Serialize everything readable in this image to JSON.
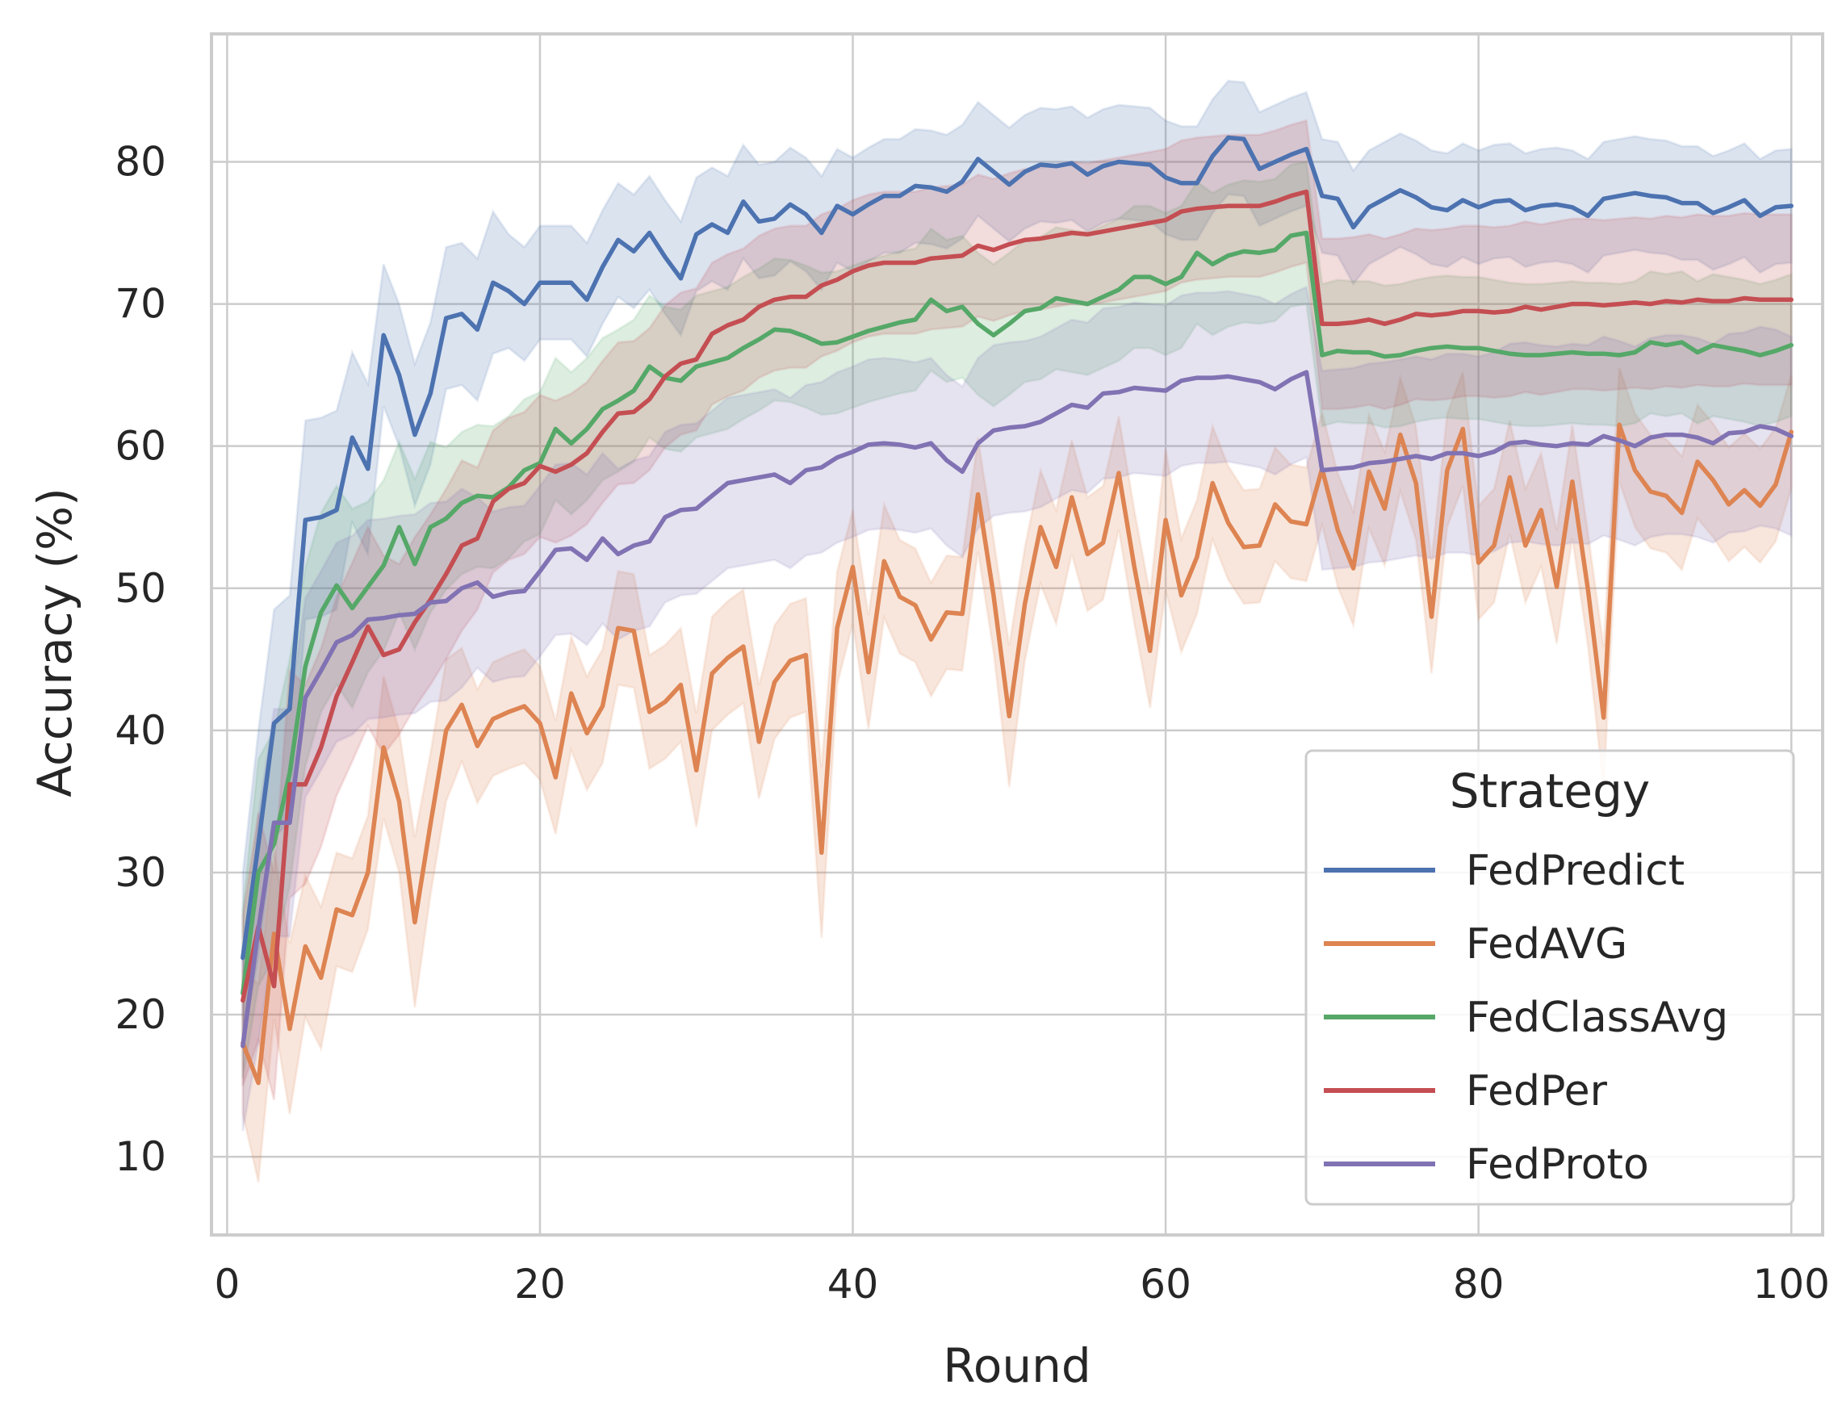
{
  "chart_data": {
    "type": "line",
    "xlabel": "Round",
    "ylabel": "Accuracy (%)",
    "xlim": [
      -1,
      102
    ],
    "ylim": [
      4.5,
      89
    ],
    "xticks": [
      0,
      20,
      40,
      60,
      80,
      100
    ],
    "yticks": [
      10,
      20,
      30,
      40,
      50,
      60,
      70,
      80
    ],
    "grid": true,
    "legend": {
      "title": "Strategy",
      "placement": "lower-right"
    },
    "series": [
      {
        "name": "FedPredict",
        "color": "#4c72b0",
        "band_half_width": [
          6,
          8,
          8,
          8,
          7,
          7,
          7,
          6,
          6,
          5,
          5,
          5,
          5,
          5,
          5,
          5,
          5,
          4,
          4,
          4,
          4,
          4,
          4,
          4,
          4,
          4,
          4,
          4,
          4,
          4,
          4,
          4,
          4,
          4,
          4,
          4,
          4,
          4,
          4,
          4,
          4,
          4,
          4,
          4,
          4,
          4,
          4,
          4,
          4,
          4,
          4,
          4,
          4,
          4,
          4,
          4,
          4,
          4,
          4,
          4,
          4,
          4,
          4,
          4,
          4,
          4,
          4,
          4,
          4,
          4,
          4,
          4,
          4,
          4,
          4,
          4,
          4,
          4,
          4,
          4,
          4,
          4,
          4,
          4,
          4,
          4,
          4,
          4,
          4,
          4,
          4,
          4,
          4,
          4,
          4,
          4,
          4,
          4,
          4,
          4
        ],
        "values": [
          24,
          32,
          40.5,
          41.5,
          54.8,
          55,
          55.5,
          60.6,
          58.4,
          67.8,
          65,
          60.8,
          63.7,
          69,
          69.3,
          68.2,
          71.5,
          70.9,
          70,
          71.5,
          71.5,
          71.5,
          70.3,
          72.6,
          74.5,
          73.7,
          75,
          73.3,
          71.8,
          74.9,
          75.6,
          75,
          77.2,
          75.8,
          76,
          77,
          76.3,
          75,
          76.9,
          76.3,
          77,
          77.6,
          77.6,
          78.3,
          78.2,
          77.9,
          78.6,
          80.2,
          79.3,
          78.4,
          79.3,
          79.8,
          79.7,
          79.9,
          79.1,
          79.7,
          80,
          79.9,
          79.8,
          78.9,
          78.5,
          78.5,
          80.4,
          81.7,
          81.6,
          79.5,
          80,
          80.5,
          80.9,
          77.6,
          77.4,
          75.4,
          76.8,
          77.4,
          78,
          77.5,
          76.8,
          76.6,
          77.3,
          76.8,
          77.2,
          77.3,
          76.6,
          76.9,
          77,
          76.8,
          76.2,
          77.4,
          77.6,
          77.8,
          77.6,
          77.5,
          77.1,
          77.1,
          76.4,
          76.8,
          77.3,
          76.2,
          76.8,
          76.9
        ]
      },
      {
        "name": "FedAVG",
        "color": "#dd8452",
        "band_half_width": [
          5,
          7,
          6,
          6,
          5,
          5,
          4,
          4,
          4,
          5,
          5,
          6,
          5,
          5,
          4,
          4,
          4,
          4,
          4,
          4,
          4,
          4,
          4,
          4,
          4,
          4,
          4,
          4,
          4,
          4,
          4,
          4,
          4,
          4,
          4,
          4,
          4,
          6,
          4,
          4,
          4,
          4,
          4,
          4,
          4,
          4,
          4,
          4,
          4,
          5,
          4,
          4,
          4,
          4,
          4,
          4,
          4,
          4,
          4,
          5,
          4,
          4,
          4,
          4,
          4,
          4,
          4,
          4,
          4,
          4,
          4,
          4,
          4,
          4,
          4,
          4,
          4,
          4,
          4,
          4,
          4,
          4,
          4,
          4,
          4,
          4,
          4,
          5,
          4,
          4,
          4,
          4,
          4,
          4,
          4,
          4,
          4,
          4,
          4,
          4
        ],
        "values": [
          18,
          15.2,
          25.7,
          19,
          24.8,
          22.6,
          27.4,
          27,
          30,
          38.8,
          35,
          26.5,
          33.4,
          40,
          41.8,
          38.9,
          40.8,
          41.3,
          41.7,
          40.5,
          36.7,
          42.6,
          39.8,
          41.7,
          47.2,
          47,
          41.3,
          42,
          43.2,
          37.2,
          44,
          45.1,
          45.9,
          39.2,
          43.4,
          44.9,
          45.3,
          31.4,
          47.2,
          51.5,
          44.1,
          51.9,
          49.4,
          48.8,
          46.4,
          48.3,
          48.2,
          56.6,
          49.5,
          41,
          48.9,
          54.3,
          51.5,
          56.4,
          52.4,
          53.2,
          58.1,
          51.5,
          45.6,
          54.8,
          49.5,
          52.2,
          57.4,
          54.6,
          52.9,
          53,
          55.9,
          54.7,
          54.5,
          58.4,
          54.1,
          51.4,
          58.2,
          55.6,
          60.8,
          57.4,
          48,
          58.3,
          61.2,
          51.8,
          53,
          57.8,
          53,
          55.5,
          50.1,
          57.5,
          49.9,
          40.9,
          61.5,
          58.3,
          56.8,
          56.5,
          55.3,
          58.9,
          57.6,
          55.9,
          56.9,
          55.8,
          57.3,
          61
        ]
      },
      {
        "name": "FedClassAvg",
        "color": "#55a868",
        "band_half_width": [
          6,
          8,
          8,
          8,
          7,
          7,
          7,
          7,
          6,
          6,
          6,
          6,
          6,
          5,
          5,
          5,
          5,
          5,
          5,
          5,
          5,
          5,
          5,
          5,
          5,
          5,
          5,
          5,
          5,
          5,
          5,
          5,
          5,
          5,
          5,
          5,
          5,
          5,
          5,
          5,
          5,
          5,
          5,
          5,
          5,
          5,
          5,
          5,
          5,
          5,
          5,
          5,
          5,
          5,
          5,
          5,
          5,
          5,
          5,
          5,
          5,
          5,
          5,
          5,
          5,
          5,
          5,
          5,
          5,
          5,
          5,
          5,
          5,
          5,
          5,
          5,
          5,
          5,
          5,
          5,
          5,
          5,
          5,
          5,
          5,
          5,
          5,
          5,
          5,
          5,
          5,
          5,
          5,
          5,
          5,
          5,
          5,
          5,
          5,
          5
        ],
        "values": [
          21.5,
          30,
          32,
          37,
          44.5,
          48.3,
          50.2,
          48.6,
          50.1,
          51.6,
          54.3,
          51.7,
          54.3,
          54.9,
          56,
          56.5,
          56.4,
          57.1,
          58.3,
          58.8,
          61.2,
          60.2,
          61.2,
          62.6,
          63.2,
          63.9,
          65.6,
          64.8,
          64.6,
          65.6,
          65.9,
          66.2,
          66.9,
          67.5,
          68.2,
          68.1,
          67.7,
          67.2,
          67.3,
          67.7,
          68.1,
          68.4,
          68.7,
          68.9,
          70.3,
          69.5,
          69.8,
          68.6,
          67.8,
          68.6,
          69.5,
          69.7,
          70.4,
          70.2,
          70,
          70.5,
          71,
          71.9,
          71.9,
          71.4,
          71.9,
          73.6,
          72.8,
          73.4,
          73.7,
          73.6,
          73.8,
          74.8,
          75,
          66.4,
          66.7,
          66.6,
          66.6,
          66.3,
          66.4,
          66.7,
          66.9,
          67,
          66.9,
          66.9,
          66.7,
          66.5,
          66.4,
          66.4,
          66.5,
          66.6,
          66.5,
          66.5,
          66.4,
          66.6,
          67.3,
          67.1,
          67.3,
          66.6,
          67.1,
          66.9,
          66.7,
          66.4,
          66.7,
          67.1
        ]
      },
      {
        "name": "FedPer",
        "color": "#c44e52",
        "band_half_width": [
          6,
          8,
          8,
          8,
          7,
          7,
          7,
          7,
          7,
          7,
          6,
          6,
          6,
          6,
          6,
          5,
          5,
          5,
          5,
          5,
          5,
          5,
          5,
          5,
          5,
          5,
          5,
          5,
          5,
          5,
          5,
          5,
          5,
          5,
          5,
          5,
          5,
          5,
          5,
          5,
          5,
          5,
          5,
          5,
          5,
          5,
          5,
          5,
          5,
          5,
          5,
          5,
          5,
          5,
          5,
          5,
          5,
          5,
          5,
          5,
          5,
          5,
          5,
          5,
          5,
          5,
          5,
          5,
          5,
          6,
          6,
          6,
          6,
          6,
          6,
          6,
          6,
          6,
          6,
          6,
          6,
          6,
          6,
          6,
          6,
          6,
          6,
          6,
          6,
          6,
          6,
          6,
          6,
          6,
          6,
          6,
          6,
          6,
          6,
          6
        ],
        "values": [
          21,
          26.2,
          22,
          36.2,
          36.2,
          38.8,
          42.4,
          44.8,
          47.3,
          45.3,
          45.7,
          47.6,
          49.2,
          51,
          53,
          53.5,
          56.1,
          57,
          57.4,
          58.6,
          58.2,
          58.7,
          59.5,
          61,
          62.3,
          62.4,
          63.3,
          64.9,
          65.8,
          66.1,
          67.9,
          68.5,
          68.9,
          69.8,
          70.3,
          70.5,
          70.5,
          71.3,
          71.7,
          72.3,
          72.7,
          72.9,
          72.9,
          72.9,
          73.2,
          73.3,
          73.4,
          74.1,
          73.8,
          74.2,
          74.5,
          74.6,
          74.8,
          75,
          74.9,
          75.1,
          75.3,
          75.5,
          75.7,
          75.9,
          76.5,
          76.7,
          76.8,
          76.9,
          76.9,
          76.9,
          77.2,
          77.6,
          77.9,
          68.6,
          68.6,
          68.7,
          68.9,
          68.6,
          68.9,
          69.3,
          69.2,
          69.3,
          69.5,
          69.5,
          69.4,
          69.5,
          69.8,
          69.6,
          69.8,
          70,
          70,
          69.9,
          70,
          70.1,
          70,
          70.2,
          70.1,
          70.3,
          70.2,
          70.2,
          70.4,
          70.3,
          70.3,
          70.3
        ]
      },
      {
        "name": "FedProto",
        "color": "#8172b3",
        "band_half_width": [
          6,
          8,
          8,
          8,
          7,
          7,
          7,
          7,
          7,
          7,
          7,
          7,
          7,
          7,
          7,
          6,
          6,
          6,
          6,
          6,
          6,
          6,
          6,
          6,
          6,
          6,
          6,
          6,
          6,
          6,
          6,
          6,
          6,
          6,
          6,
          6,
          6,
          6,
          6,
          6,
          6,
          6,
          6,
          6,
          6,
          6,
          6,
          6,
          6,
          6,
          6,
          6,
          6,
          6,
          6,
          6,
          6,
          6,
          6,
          6,
          6,
          6,
          6,
          6,
          6,
          6,
          6,
          6,
          6,
          7,
          7,
          7,
          7,
          7,
          7,
          7,
          7,
          7,
          7,
          7,
          7,
          7,
          7,
          7,
          7,
          7,
          7,
          7,
          7,
          7,
          7,
          7,
          7,
          7,
          7,
          7,
          7,
          7,
          7,
          7
        ],
        "values": [
          17.8,
          26,
          33.5,
          33.5,
          42.3,
          44.2,
          46.2,
          46.7,
          47.8,
          47.9,
          48.1,
          48.2,
          49,
          49.1,
          50,
          50.4,
          49.4,
          49.7,
          49.8,
          51.2,
          52.7,
          52.8,
          52,
          53.5,
          52.4,
          53,
          53.3,
          55,
          55.5,
          55.6,
          56.5,
          57.4,
          57.6,
          57.8,
          58,
          57.4,
          58.3,
          58.5,
          59.2,
          59.6,
          60.1,
          60.2,
          60.1,
          59.9,
          60.2,
          59,
          58.2,
          60.2,
          61.1,
          61.3,
          61.4,
          61.7,
          62.3,
          62.9,
          62.7,
          63.7,
          63.8,
          64.1,
          64,
          63.9,
          64.6,
          64.8,
          64.8,
          64.9,
          64.7,
          64.5,
          64,
          64.7,
          65.2,
          58.3,
          58.4,
          58.5,
          58.8,
          58.9,
          59.1,
          59.3,
          59.1,
          59.5,
          59.5,
          59.3,
          59.6,
          60.2,
          60.3,
          60.1,
          60,
          60.2,
          60.1,
          60.7,
          60.4,
          60,
          60.6,
          60.8,
          60.8,
          60.6,
          60.2,
          60.9,
          61,
          61.4,
          61.2,
          60.7
        ]
      }
    ]
  }
}
